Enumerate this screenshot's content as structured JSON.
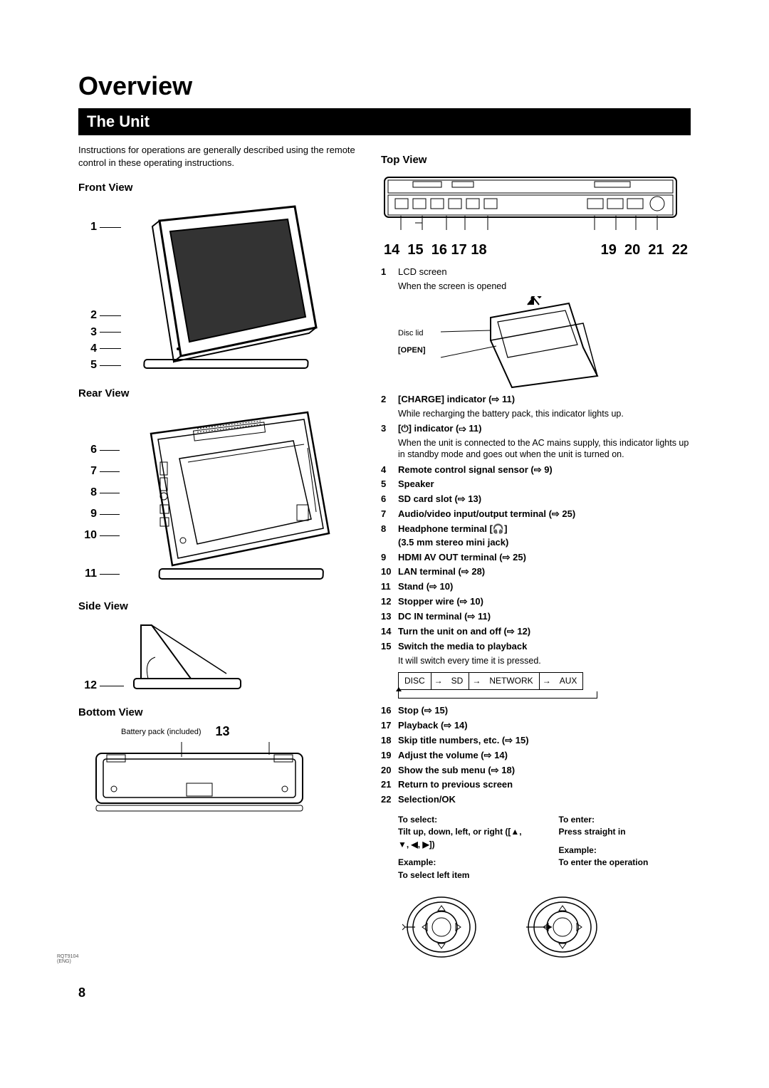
{
  "title": "Overview",
  "section": "The Unit",
  "intro": "Instructions for operations are generally described using the remote control in these operating instructions.",
  "views": {
    "front": "Front View",
    "rear": "Rear View",
    "side": "Side View",
    "bottom": "Bottom View",
    "top": "Top View"
  },
  "front_callouts": [
    "1",
    "2",
    "3",
    "4",
    "5"
  ],
  "rear_callouts": [
    "6",
    "7",
    "8",
    "9",
    "10",
    "11"
  ],
  "side_callout": "12",
  "bottom_callout": "13",
  "bottom_label": "Battery pack (included)",
  "top_numbers_left": "14  15  16 17 18",
  "top_numbers_right": "19  20  21  22",
  "lcd": {
    "num": "1",
    "title": "LCD screen",
    "sub": "When the screen is opened",
    "disc_lid": "Disc lid",
    "open": "[OPEN]"
  },
  "features": [
    {
      "n": "2",
      "t": "[CHARGE] indicator (⇨ 11)",
      "sub": "While recharging the battery pack, this indicator lights up."
    },
    {
      "n": "3",
      "t": "[⏻] indicator (⇨ 11)",
      "sub": "When the unit is connected to the AC mains supply, this indicator lights up in standby mode and goes out when the unit is turned on."
    },
    {
      "n": "4",
      "t": "Remote control signal sensor (⇨ 9)"
    },
    {
      "n": "5",
      "t": "Speaker"
    },
    {
      "n": "6",
      "t": "SD card slot (⇨ 13)"
    },
    {
      "n": "7",
      "t": "Audio/video input/output terminal (⇨ 25)"
    },
    {
      "n": "8",
      "t": "Headphone terminal [🎧]\n(3.5 mm stereo mini jack)"
    },
    {
      "n": "9",
      "t": "HDMI AV OUT terminal (⇨ 25)"
    },
    {
      "n": "10",
      "t": "LAN terminal (⇨ 28)"
    },
    {
      "n": "11",
      "t": "Stand (⇨ 10)"
    },
    {
      "n": "12",
      "t": "Stopper wire (⇨ 10)"
    },
    {
      "n": "13",
      "t": "DC IN terminal (⇨ 11)"
    },
    {
      "n": "14",
      "t": "Turn the unit on and off (⇨ 12)"
    },
    {
      "n": "15",
      "t": "Switch the media to playback",
      "sub": "It will switch every time it is pressed."
    }
  ],
  "media_seq": [
    "DISC",
    "SD",
    "NETWORK",
    "AUX"
  ],
  "features2": [
    {
      "n": "16",
      "t": "Stop (⇨ 15)"
    },
    {
      "n": "17",
      "t": "Playback (⇨ 14)"
    },
    {
      "n": "18",
      "t": "Skip title numbers, etc. (⇨ 15)"
    },
    {
      "n": "19",
      "t": "Adjust the volume (⇨ 14)"
    },
    {
      "n": "20",
      "t": "Show the sub menu (⇨ 18)"
    },
    {
      "n": "21",
      "t": "Return to previous screen"
    },
    {
      "n": "22",
      "t": "Selection/OK"
    }
  ],
  "select_enter": {
    "select_h": "To select:",
    "select_t": "Tilt up, down, left, or right ([▲, ▼, ◀, ▶])",
    "enter_h": "To enter:",
    "enter_t": "Press straight in",
    "ex": "Example:",
    "ex_select": "To select left item",
    "ex_enter": "To enter the operation"
  },
  "page_number": "8",
  "doc_code": "RQT9104\n(ENG)",
  "colors": {
    "bg": "#ffffff",
    "fg": "#000000",
    "bar_bg": "#000000",
    "bar_fg": "#ffffff"
  }
}
